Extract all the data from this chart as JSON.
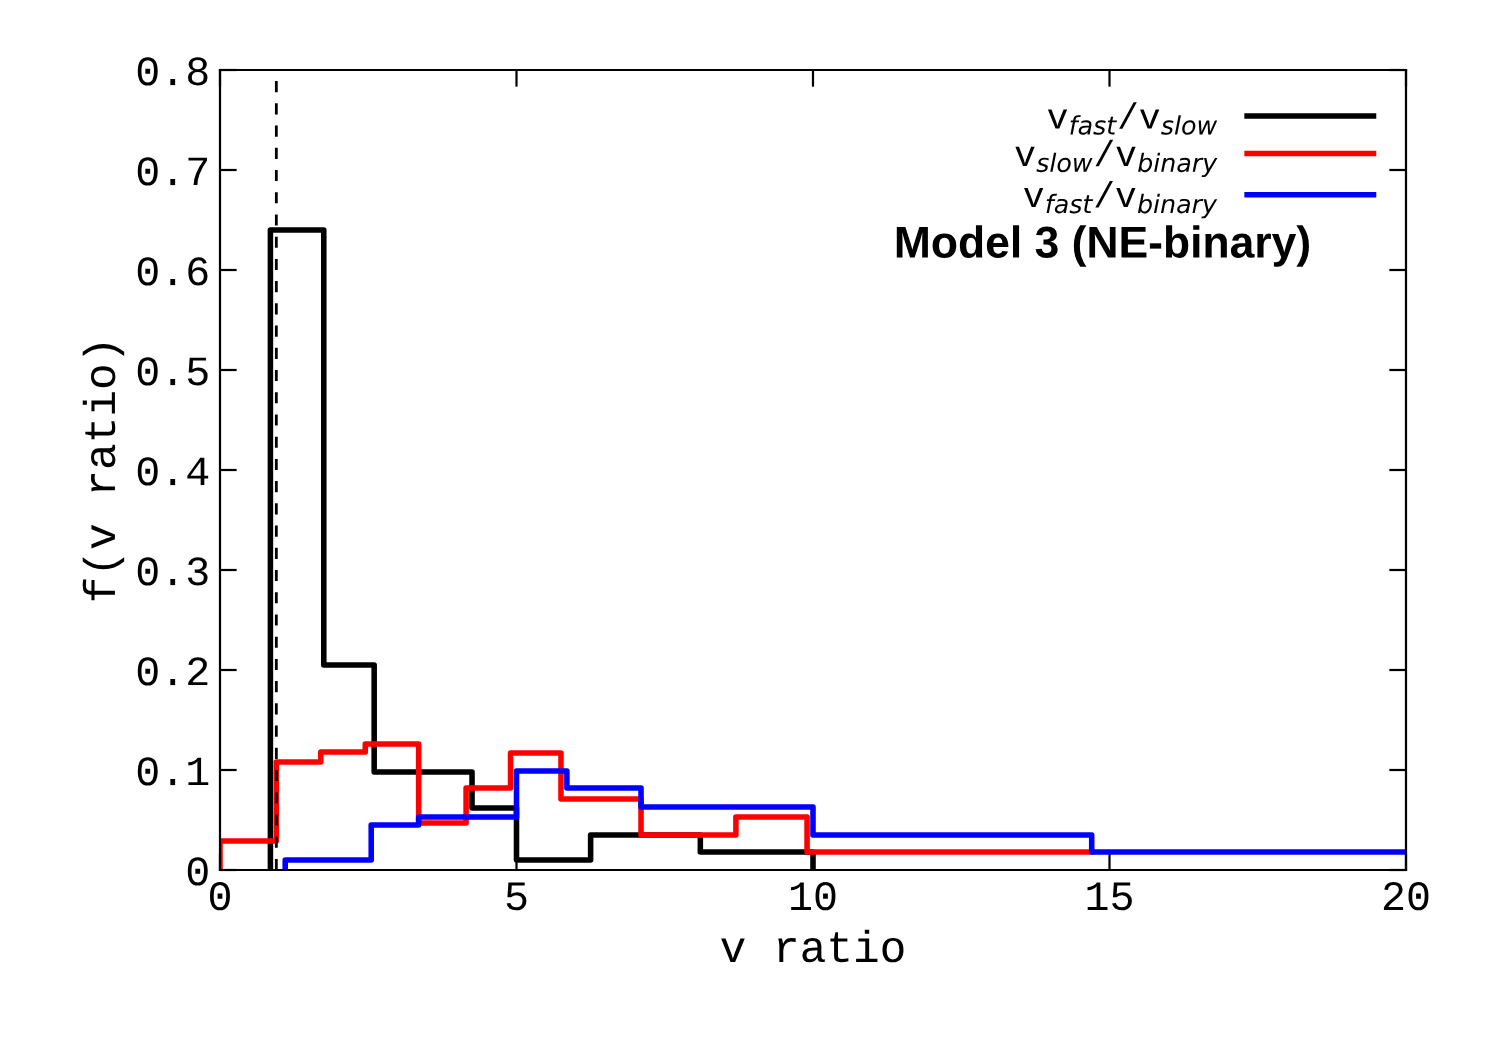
{
  "chart_data": {
    "type": "step",
    "xlabel": "v ratio",
    "ylabel": "f(v ratio)",
    "xlim": [
      0,
      20
    ],
    "ylim": [
      0,
      0.8
    ],
    "xticks": [
      0,
      5,
      10,
      15,
      20
    ],
    "yticks": [
      0,
      0.1,
      0.2,
      0.3,
      0.4,
      0.5,
      0.6,
      0.7,
      0.8
    ],
    "series": [
      {
        "name": "v$_{fast}$/v$_{slow}$",
        "color": "#000000",
        "x": [
          0.85,
          0.85,
          1.75,
          2.6,
          4.25,
          5.0,
          6.25,
          8.1,
          10.0
        ],
        "values": [
          0,
          0.64,
          0.205,
          0.098,
          0.062,
          0.01,
          0.035,
          0.018,
          0
        ]
      },
      {
        "name": "v$_{slow}$/v$_{binary}$",
        "color": "#ff0000",
        "x": [
          0.0,
          0.0,
          0.95,
          1.7,
          2.45,
          3.35,
          4.15,
          4.9,
          5.75,
          7.1,
          8.7,
          9.9,
          14.7
        ],
        "values": [
          0,
          0.029,
          0.108,
          0.118,
          0.126,
          0.047,
          0.082,
          0.117,
          0.071,
          0.035,
          0.053,
          0.018,
          0.018
        ]
      },
      {
        "name": "v$_{fast}$/v$_{binary}$",
        "color": "#0000ff",
        "x": [
          1.1,
          1.1,
          2.55,
          3.35,
          5.0,
          5.85,
          7.1,
          10.0,
          14.7,
          20.0
        ],
        "values": [
          0,
          0.01,
          0.045,
          0.053,
          0.099,
          0.082,
          0.063,
          0.035,
          0.018,
          0.018
        ]
      }
    ],
    "ref_lines": [
      {
        "axis": "x",
        "value": 0.95,
        "color": "#000000",
        "line_style": "dashed"
      }
    ],
    "annotations": [
      "Model 3 (NE-binary)"
    ],
    "legend": "top right"
  }
}
